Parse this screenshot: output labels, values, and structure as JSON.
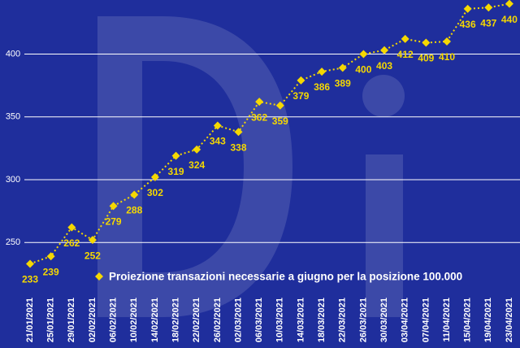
{
  "chart_data": {
    "type": "line",
    "categories": [
      "21/01/2021",
      "25/01/2021",
      "29/01/2021",
      "02/02/2021",
      "06/02/2021",
      "10/02/2021",
      "14/02/2021",
      "18/02/2021",
      "22/02/2021",
      "26/02/2021",
      "02/03/2021",
      "06/03/2021",
      "10/03/2021",
      "14/03/2021",
      "18/03/2021",
      "22/03/2021",
      "26/03/2021",
      "30/03/2021",
      "03/04/2021",
      "07/04/2021",
      "11/04/2021",
      "15/04/2021",
      "19/04/2021",
      "23/04/2021"
    ],
    "series": [
      {
        "name": "Proiezione transazioni necessarie a giugno per la posizione 100.000",
        "color": "#f5d800",
        "values": [
          233,
          239,
          262,
          252,
          279,
          288,
          302,
          319,
          324,
          343,
          338,
          362,
          359,
          379,
          386,
          389,
          400,
          403,
          412,
          409,
          410,
          436,
          437,
          440
        ]
      }
    ],
    "ylim": [
      210,
      443
    ],
    "yticks": [
      250,
      300,
      350,
      400
    ],
    "grid": true
  }
}
